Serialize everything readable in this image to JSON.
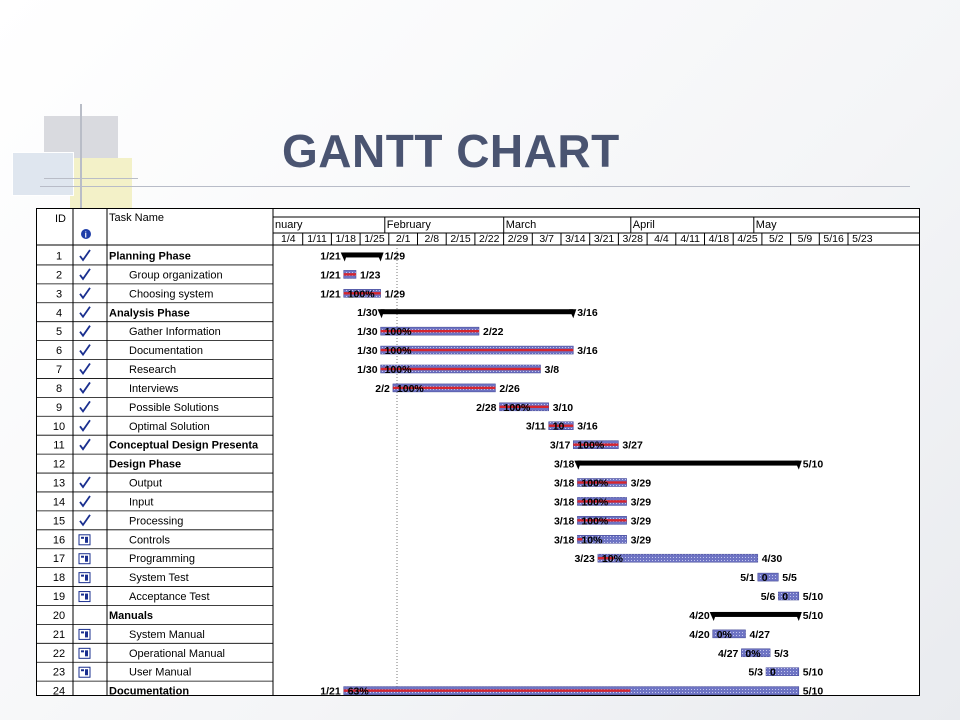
{
  "slide": {
    "title": "GANTT CHART"
  },
  "chart_data": {
    "type": "gantt",
    "columns": {
      "id": "ID",
      "task_name": "Task Name"
    },
    "months": [
      "nuary",
      "February",
      "March",
      "April",
      "May"
    ],
    "weeks": [
      "1/4",
      "1/11",
      "1/18",
      "1/25",
      "2/1",
      "2/8",
      "2/15",
      "2/22",
      "2/29",
      "3/7",
      "3/14",
      "3/21",
      "3/28",
      "4/4",
      "4/11",
      "4/18",
      "4/25",
      "5/2",
      "5/9",
      "5/16",
      "5/23"
    ],
    "indicator_icons": {
      "header": "info-icon",
      "done": "checkmark-icon",
      "pending": "notes-icon"
    },
    "tasks": [
      {
        "id": "1",
        "name": "Planning Phase",
        "summary": true,
        "status": "done",
        "start": "1/21",
        "finish": "1/29",
        "start_label": "1/21",
        "finish_label": "1/29",
        "percent_label": ""
      },
      {
        "id": "2",
        "name": "Group organization",
        "summary": false,
        "status": "done",
        "start": "1/21",
        "finish": "1/23",
        "start_label": "1/21",
        "finish_label": "1/23",
        "percent_label": ""
      },
      {
        "id": "3",
        "name": "Choosing system",
        "summary": false,
        "status": "done",
        "start": "1/21",
        "finish": "1/29",
        "start_label": "1/21",
        "finish_label": "1/29",
        "percent_label": "100%"
      },
      {
        "id": "4",
        "name": "Analysis Phase",
        "summary": true,
        "status": "done",
        "start": "1/30",
        "finish": "3/16",
        "start_label": "1/30",
        "finish_label": "3/16",
        "percent_label": ""
      },
      {
        "id": "5",
        "name": "Gather Information",
        "summary": false,
        "status": "done",
        "start": "1/30",
        "finish": "2/22",
        "start_label": "1/30",
        "finish_label": "2/22",
        "percent_label": "100%"
      },
      {
        "id": "6",
        "name": "Documentation",
        "summary": false,
        "status": "done",
        "start": "1/30",
        "finish": "3/16",
        "start_label": "1/30",
        "finish_label": "3/16",
        "percent_label": "100%"
      },
      {
        "id": "7",
        "name": "Research",
        "summary": false,
        "status": "done",
        "start": "1/30",
        "finish": "3/8",
        "start_label": "1/30",
        "finish_label": "3/8",
        "percent_label": "100%"
      },
      {
        "id": "8",
        "name": "Interviews",
        "summary": false,
        "status": "done",
        "start": "2/2",
        "finish": "2/26",
        "start_label": "2/2",
        "finish_label": "2/26",
        "percent_label": "100%"
      },
      {
        "id": "9",
        "name": "Possible Solutions",
        "summary": false,
        "status": "done",
        "start": "2/28",
        "finish": "3/10",
        "start_label": "2/28",
        "finish_label": "3/10",
        "percent_label": "100%"
      },
      {
        "id": "10",
        "name": "Optimal Solution",
        "summary": false,
        "status": "done",
        "start": "3/11",
        "finish": "3/16",
        "start_label": "3/11",
        "finish_label": "3/16",
        "percent_label": "10"
      },
      {
        "id": "11",
        "name": "Conceptual Design Presenta",
        "summary": true,
        "status": "done",
        "start": "3/17",
        "finish": "3/27",
        "start_label": "3/17",
        "finish_label": "3/27",
        "percent_label": "100%"
      },
      {
        "id": "12",
        "name": "Design Phase",
        "summary": true,
        "status": "none",
        "start": "3/18",
        "finish": "5/10",
        "start_label": "3/18",
        "finish_label": "5/10",
        "percent_label": ""
      },
      {
        "id": "13",
        "name": "Output",
        "summary": false,
        "status": "done",
        "start": "3/18",
        "finish": "3/29",
        "start_label": "3/18",
        "finish_label": "3/29",
        "percent_label": "100%"
      },
      {
        "id": "14",
        "name": "Input",
        "summary": false,
        "status": "done",
        "start": "3/18",
        "finish": "3/29",
        "start_label": "3/18",
        "finish_label": "3/29",
        "percent_label": "100%"
      },
      {
        "id": "15",
        "name": "Processing",
        "summary": false,
        "status": "done",
        "start": "3/18",
        "finish": "3/29",
        "start_label": "3/18",
        "finish_label": "3/29",
        "percent_label": "100%"
      },
      {
        "id": "16",
        "name": "Controls",
        "summary": false,
        "status": "pending",
        "start": "3/18",
        "finish": "3/29",
        "start_label": "3/18",
        "finish_label": "3/29",
        "percent_label": "10%"
      },
      {
        "id": "17",
        "name": "Programming",
        "summary": false,
        "status": "pending",
        "start": "3/23",
        "finish": "4/30",
        "start_label": "3/23",
        "finish_label": "4/30",
        "percent_label": "10%"
      },
      {
        "id": "18",
        "name": "System Test",
        "summary": false,
        "status": "pending",
        "start": "5/1",
        "finish": "5/5",
        "start_label": "5/1",
        "finish_label": "5/5",
        "percent_label": "0"
      },
      {
        "id": "19",
        "name": "Acceptance Test",
        "summary": false,
        "status": "pending",
        "start": "5/6",
        "finish": "5/10",
        "start_label": "5/6",
        "finish_label": "5/10",
        "percent_label": "0"
      },
      {
        "id": "20",
        "name": "Manuals",
        "summary": true,
        "status": "none",
        "start": "4/20",
        "finish": "5/10",
        "start_label": "4/20",
        "finish_label": "5/10",
        "percent_label": ""
      },
      {
        "id": "21",
        "name": "System Manual",
        "summary": false,
        "status": "pending",
        "start": "4/20",
        "finish": "4/27",
        "start_label": "4/20",
        "finish_label": "4/27",
        "percent_label": "0%"
      },
      {
        "id": "22",
        "name": "Operational Manual",
        "summary": false,
        "status": "pending",
        "start": "4/27",
        "finish": "5/3",
        "start_label": "4/27",
        "finish_label": "5/3",
        "percent_label": "0%"
      },
      {
        "id": "23",
        "name": "User Manual",
        "summary": false,
        "status": "pending",
        "start": "5/3",
        "finish": "5/10",
        "start_label": "5/3",
        "finish_label": "5/10",
        "percent_label": "0"
      },
      {
        "id": "24",
        "name": "Documentation",
        "summary": true,
        "status": "none",
        "start": "1/21",
        "finish": "5/10",
        "start_label": "1/21",
        "finish_label": "5/10",
        "percent_label": "63%"
      }
    ],
    "colors": {
      "bar_fill": "#6e74c4",
      "progress": "#d6252e",
      "summary": "#000000",
      "label": "#000000"
    }
  }
}
